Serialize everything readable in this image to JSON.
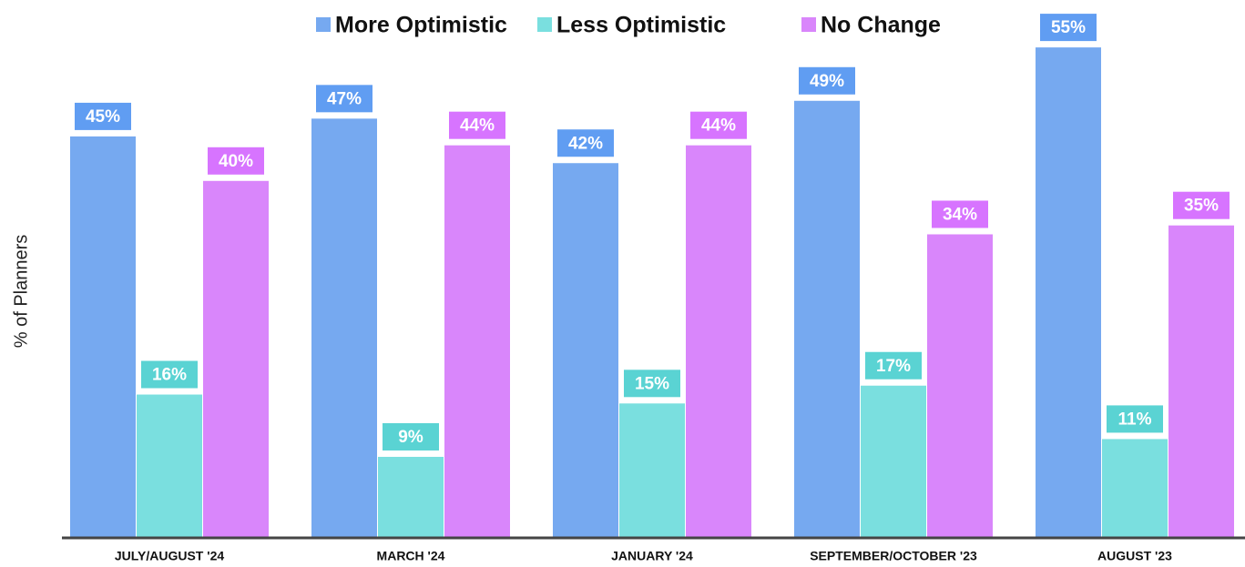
{
  "chart_data": {
    "type": "bar",
    "y_label": "% of Planners",
    "categories": [
      "JULY/AUGUST '24",
      "MARCH '24",
      "JANUARY '24",
      "SEPTEMBER/OCTOBER '23",
      "AUGUST '23"
    ],
    "series": [
      {
        "name": "More Optimistic",
        "color": "#76a9f0",
        "values": [
          45,
          47,
          42,
          49,
          55
        ],
        "value_labels": [
          "45%",
          "47%",
          "42%",
          "49%",
          "55%"
        ]
      },
      {
        "name": "Less Optimistic",
        "color": "#7adfdf",
        "values": [
          16,
          9,
          15,
          17,
          11
        ],
        "value_labels": [
          "16%",
          "9%",
          "15%",
          "17%",
          "11%"
        ]
      },
      {
        "name": "No Change",
        "color": "#d986fb",
        "values": [
          40,
          44,
          44,
          34,
          35
        ],
        "value_labels": [
          "40%",
          "44%",
          "44%",
          "34%",
          "35%"
        ]
      }
    ]
  }
}
